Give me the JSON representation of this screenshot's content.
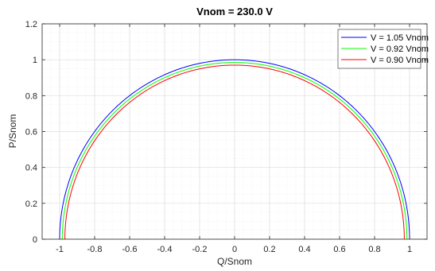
{
  "chart_data": {
    "type": "line",
    "title": "Vnom = 230.0 V",
    "xlabel": "Q/Snom",
    "ylabel": "P/Snom",
    "xlim": [
      -1.1,
      1.1
    ],
    "ylim": [
      0,
      1.2
    ],
    "xticks": [
      -1,
      -0.8,
      -0.6,
      -0.4,
      -0.2,
      0,
      0.2,
      0.4,
      0.6,
      0.8,
      1
    ],
    "xtick_labels": [
      "-1",
      "-0.8",
      "-0.6",
      "-0.4",
      "-0.2",
      "0",
      "0.2",
      "0.4",
      "0.6",
      "0.8",
      "1"
    ],
    "yticks": [
      0,
      0.2,
      0.4,
      0.6,
      0.8,
      1,
      1.2
    ],
    "ytick_labels": [
      "0",
      "0.2",
      "0.4",
      "0.6",
      "0.8",
      "1",
      "1.2"
    ],
    "grid": true,
    "minor_grid": true,
    "legend_position": "top-right",
    "series": [
      {
        "name": "V = 1.05 Vnom",
        "color": "#0000ff",
        "shape": "semicircle",
        "radius": 1.0
      },
      {
        "name": "V = 0.92 Vnom",
        "color": "#00ff00",
        "shape": "semicircle",
        "radius": 0.985
      },
      {
        "name": "V = 0.90 Vnom",
        "color": "#ff0000",
        "shape": "semicircle",
        "radius": 0.97
      }
    ]
  }
}
